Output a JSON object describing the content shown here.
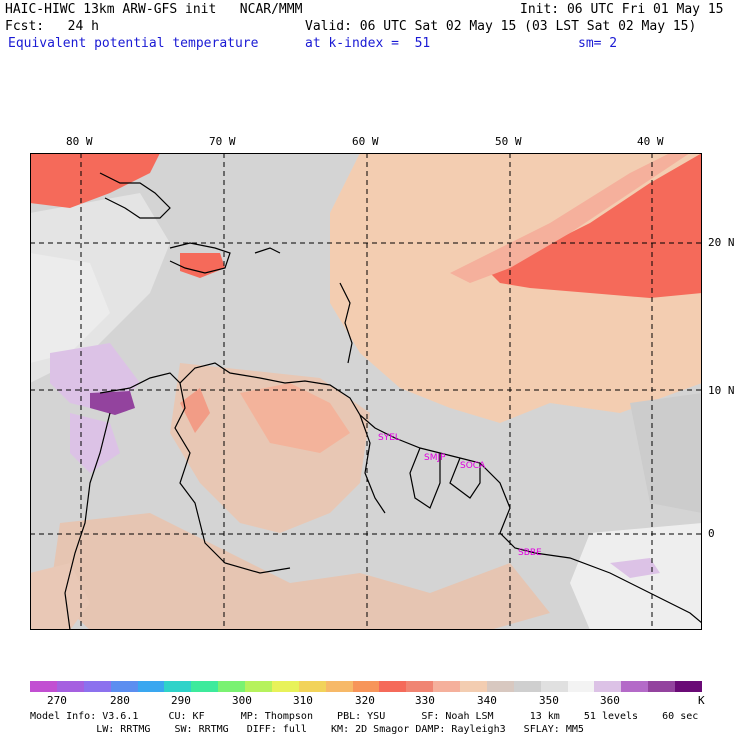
{
  "header": {
    "title_left": "HAIC-HIWC 13km ARW-GFS init   NCAR/MMM",
    "init": "Init: 06 UTC Fri 01 May 15",
    "fcst": "Fcst:   24 h",
    "valid": "Valid: 06 UTC Sat 02 May 15 (03 LST Sat 02 May 15)",
    "field": "Equivalent potential temperature",
    "level": "at k-index =  51",
    "smooth": "sm= 2"
  },
  "map": {
    "lon_labels": [
      "80 W",
      "70 W",
      "60 W",
      "50 W",
      "40 W"
    ],
    "lat_labels": [
      "20 N",
      "10 N",
      "0"
    ],
    "stations": [
      "SYEL",
      "SMJP",
      "SOCA",
      "SBBE"
    ]
  },
  "colorbar": {
    "colors": [
      "#c24fd2",
      "#a560e0",
      "#8c71ee",
      "#5c8ef0",
      "#3aa7f0",
      "#2fd3c9",
      "#3dea9c",
      "#7af272",
      "#b6f25d",
      "#e8f25a",
      "#f2d35a",
      "#f7b968",
      "#f7955a",
      "#f56a5a",
      "#f08573",
      "#f5b09c",
      "#f3cdb1",
      "#d8c8c0",
      "#cfcfcf",
      "#e0e0e0",
      "#f3f3f3",
      "#dcc2e6",
      "#b46ac8",
      "#93439e",
      "#6a0a76"
    ],
    "labels": [
      "270",
      "280",
      "290",
      "300",
      "310",
      "320",
      "330",
      "340",
      "350",
      "360",
      "K"
    ]
  },
  "footer": {
    "line1": "Model Info: V3.6.1     CU: KF      MP: Thompson    PBL: YSU      SF: Noah LSM      13 km    51 levels    60 sec",
    "line2": "           LW: RRTMG    SW: RRTMG   DIFF: full    KM: 2D Smagor DAMP: Rayleigh3   SFLAY: MM5"
  }
}
